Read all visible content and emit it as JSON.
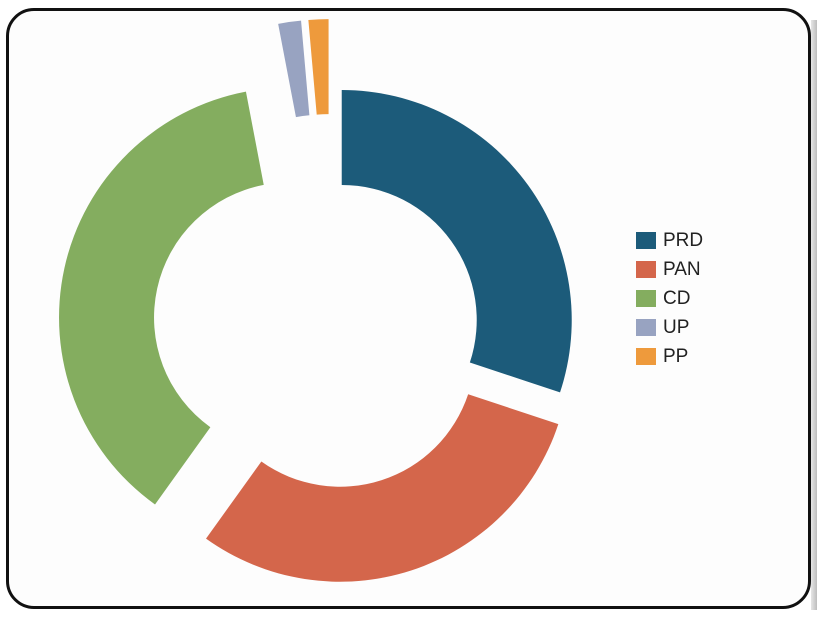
{
  "chart_data": {
    "type": "pie",
    "style": "donut-exploded",
    "series": [
      {
        "label": "PRD",
        "value": 30.1,
        "color": "#1c5b7a"
      },
      {
        "label": "PAN",
        "value": 29.8,
        "color": "#d4664b"
      },
      {
        "label": "CD",
        "value": 37.1,
        "color": "#84ad5f"
      },
      {
        "label": "UP",
        "value": 1.6,
        "color": "#98a3c1"
      },
      {
        "label": "PP",
        "value": 1.4,
        "color": "#ee9a3c"
      }
    ],
    "legend_position": "right"
  }
}
